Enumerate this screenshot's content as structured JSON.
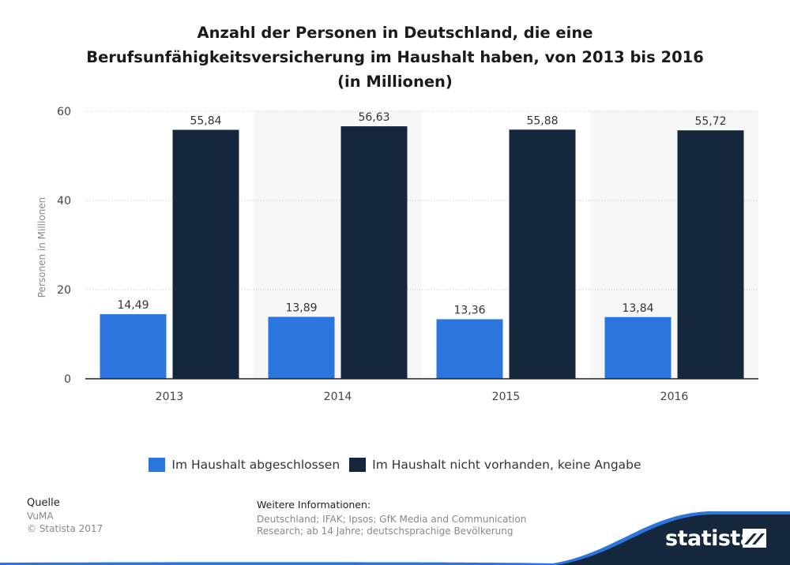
{
  "title_lines": [
    "Anzahl der Personen in Deutschland, die eine",
    "Berufsunfähigkeitsversicherung im Haushalt haben, von 2013 bis 2016",
    "(in Millionen)"
  ],
  "chart_data": {
    "type": "bar",
    "categories": [
      "2013",
      "2014",
      "2015",
      "2016"
    ],
    "series": [
      {
        "name": "Im Haushalt abgeschlossen",
        "values": [
          14.49,
          13.89,
          13.36,
          13.84
        ],
        "labels": [
          "14,49",
          "13,89",
          "13,36",
          "13,84"
        ],
        "color": "#2a76dc"
      },
      {
        "name": "Im Haushalt nicht vorhanden, keine Angabe",
        "values": [
          55.84,
          56.63,
          55.88,
          55.72
        ],
        "labels": [
          "55,84",
          "56,63",
          "55,88",
          "55,72"
        ],
        "color": "#14273d"
      }
    ],
    "ylabel": "Personen in Millionen",
    "xlabel": "",
    "ylim": [
      0,
      60
    ],
    "yticks": [
      0,
      20,
      40,
      60
    ],
    "grid": true,
    "legend": "bottom-center"
  },
  "footer": {
    "source_heading": "Quelle",
    "source_name": "VuMA",
    "copyright": "© Statista 2017",
    "info_heading": "Weitere Informationen:",
    "info_lines": [
      "Deutschland; IFAK; Ipsos; GfK Media and Communication",
      "Research; ab 14 Jahre; deutschsprachige Bevölkerung"
    ]
  },
  "brand": {
    "name": "statista",
    "color": "#14273d",
    "accent": "#2a76dc"
  }
}
